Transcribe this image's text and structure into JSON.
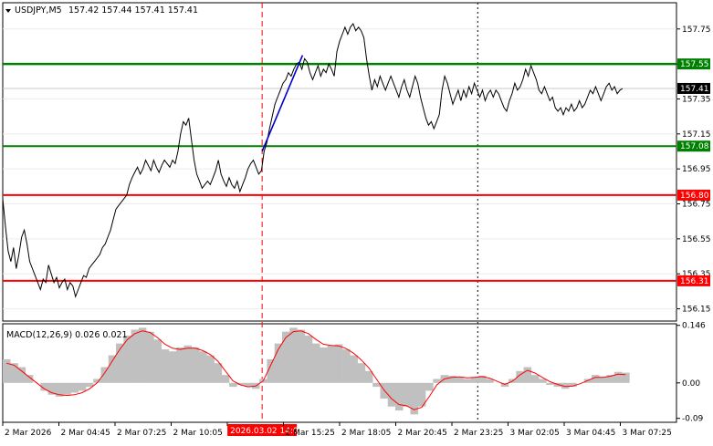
{
  "header": {
    "symbol": "USDJPY,M5",
    "ohlc": "157.42 157.44 157.41 157.41",
    "collapse_icon": "triangle-down-icon"
  },
  "colors": {
    "price_line": "#000000",
    "support": "#008000",
    "resistance": "#ff0000",
    "trend": "#0000cc",
    "histogram": "#c0c0c0",
    "signal": "#ff0000",
    "current_tag": "#000000",
    "highlight_tag": "#ff0000"
  },
  "chart_data": [
    {
      "type": "line",
      "name": "price",
      "ylim": [
        156.08,
        157.9
      ],
      "y_ticks": [
        "157.75",
        "157.55",
        "157.35",
        "157.15",
        "156.95",
        "156.75",
        "156.55",
        "156.35",
        "156.15"
      ],
      "x_tick_labels": [
        "2 Mar 2026",
        "2 Mar 04:45",
        "2 Mar 07:25",
        "2 Mar 10:05",
        "2026.03.02 14:00",
        "2 Mar 15:25",
        "2 Mar 18:05",
        "2 Mar 20:45",
        "2 Mar 23:25",
        "3 Mar 02:05",
        "3 Mar 04:45",
        "3 Mar 07:25"
      ],
      "highlighted_x_label": "2026.03.02 14:00",
      "current_price": "157.41",
      "levels": [
        {
          "label": "157.55",
          "value": 157.55,
          "kind": "support"
        },
        {
          "label": "157.08",
          "value": 157.08,
          "kind": "support"
        },
        {
          "label": "156.80",
          "value": 156.8,
          "kind": "resistance"
        },
        {
          "label": "156.31",
          "value": 156.31,
          "kind": "resistance"
        }
      ],
      "trend_segment": {
        "from": [
          0.385,
          157.05
        ],
        "to": [
          0.445,
          157.6
        ]
      },
      "vertical_markers": [
        {
          "x": 0.385,
          "style": "dashed-red"
        },
        {
          "x": 0.705,
          "style": "dotted-black"
        }
      ],
      "points": [
        [
          0.0,
          156.78
        ],
        [
          0.004,
          156.62
        ],
        [
          0.008,
          156.48
        ],
        [
          0.012,
          156.42
        ],
        [
          0.016,
          156.5
        ],
        [
          0.02,
          156.38
        ],
        [
          0.024,
          156.46
        ],
        [
          0.028,
          156.56
        ],
        [
          0.032,
          156.6
        ],
        [
          0.036,
          156.52
        ],
        [
          0.04,
          156.42
        ],
        [
          0.044,
          156.38
        ],
        [
          0.048,
          156.34
        ],
        [
          0.052,
          156.3
        ],
        [
          0.056,
          156.26
        ],
        [
          0.06,
          156.32
        ],
        [
          0.064,
          156.3
        ],
        [
          0.068,
          156.4
        ],
        [
          0.072,
          156.35
        ],
        [
          0.076,
          156.3
        ],
        [
          0.08,
          156.33
        ],
        [
          0.084,
          156.27
        ],
        [
          0.088,
          156.3
        ],
        [
          0.092,
          156.32
        ],
        [
          0.096,
          156.26
        ],
        [
          0.1,
          156.3
        ],
        [
          0.104,
          156.28
        ],
        [
          0.108,
          156.22
        ],
        [
          0.112,
          156.26
        ],
        [
          0.116,
          156.3
        ],
        [
          0.12,
          156.34
        ],
        [
          0.124,
          156.33
        ],
        [
          0.128,
          156.38
        ],
        [
          0.132,
          156.4
        ],
        [
          0.136,
          156.42
        ],
        [
          0.14,
          156.44
        ],
        [
          0.144,
          156.46
        ],
        [
          0.148,
          156.5
        ],
        [
          0.152,
          156.52
        ],
        [
          0.156,
          156.56
        ],
        [
          0.16,
          156.6
        ],
        [
          0.164,
          156.66
        ],
        [
          0.168,
          156.72
        ],
        [
          0.172,
          156.74
        ],
        [
          0.176,
          156.76
        ],
        [
          0.18,
          156.78
        ],
        [
          0.184,
          156.8
        ],
        [
          0.188,
          156.86
        ],
        [
          0.192,
          156.9
        ],
        [
          0.196,
          156.93
        ],
        [
          0.2,
          156.96
        ],
        [
          0.204,
          156.92
        ],
        [
          0.208,
          156.95
        ],
        [
          0.212,
          157.0
        ],
        [
          0.216,
          156.97
        ],
        [
          0.22,
          156.94
        ],
        [
          0.224,
          157.0
        ],
        [
          0.228,
          156.96
        ],
        [
          0.232,
          156.93
        ],
        [
          0.236,
          156.97
        ],
        [
          0.24,
          157.0
        ],
        [
          0.244,
          156.98
        ],
        [
          0.248,
          156.96
        ],
        [
          0.252,
          157.0
        ],
        [
          0.256,
          156.98
        ],
        [
          0.26,
          157.05
        ],
        [
          0.264,
          157.15
        ],
        [
          0.268,
          157.22
        ],
        [
          0.272,
          157.2
        ],
        [
          0.276,
          157.24
        ],
        [
          0.28,
          157.12
        ],
        [
          0.284,
          157.0
        ],
        [
          0.288,
          156.92
        ],
        [
          0.292,
          156.88
        ],
        [
          0.296,
          156.84
        ],
        [
          0.3,
          156.86
        ],
        [
          0.304,
          156.88
        ],
        [
          0.308,
          156.86
        ],
        [
          0.312,
          156.9
        ],
        [
          0.316,
          156.94
        ],
        [
          0.32,
          157.0
        ],
        [
          0.324,
          156.92
        ],
        [
          0.328,
          156.88
        ],
        [
          0.332,
          156.85
        ],
        [
          0.336,
          156.9
        ],
        [
          0.34,
          156.86
        ],
        [
          0.344,
          156.84
        ],
        [
          0.348,
          156.88
        ],
        [
          0.352,
          156.82
        ],
        [
          0.356,
          156.86
        ],
        [
          0.36,
          156.9
        ],
        [
          0.364,
          156.95
        ],
        [
          0.368,
          156.98
        ],
        [
          0.372,
          157.0
        ],
        [
          0.376,
          156.96
        ],
        [
          0.38,
          156.92
        ],
        [
          0.384,
          156.94
        ],
        [
          0.388,
          157.05
        ],
        [
          0.392,
          157.1
        ],
        [
          0.396,
          157.18
        ],
        [
          0.4,
          157.25
        ],
        [
          0.404,
          157.32
        ],
        [
          0.408,
          157.36
        ],
        [
          0.412,
          157.4
        ],
        [
          0.416,
          157.44
        ],
        [
          0.42,
          157.46
        ],
        [
          0.424,
          157.5
        ],
        [
          0.428,
          157.48
        ],
        [
          0.432,
          157.52
        ],
        [
          0.436,
          157.55
        ],
        [
          0.44,
          157.56
        ],
        [
          0.444,
          157.52
        ],
        [
          0.448,
          157.58
        ],
        [
          0.452,
          157.56
        ],
        [
          0.456,
          157.5
        ],
        [
          0.46,
          157.46
        ],
        [
          0.464,
          157.5
        ],
        [
          0.468,
          157.54
        ],
        [
          0.472,
          157.48
        ],
        [
          0.476,
          157.52
        ],
        [
          0.48,
          157.5
        ],
        [
          0.484,
          157.55
        ],
        [
          0.488,
          157.52
        ],
        [
          0.492,
          157.48
        ],
        [
          0.496,
          157.62
        ],
        [
          0.5,
          157.68
        ],
        [
          0.504,
          157.72
        ],
        [
          0.508,
          157.76
        ],
        [
          0.512,
          157.72
        ],
        [
          0.516,
          157.76
        ],
        [
          0.52,
          157.78
        ],
        [
          0.524,
          157.74
        ],
        [
          0.528,
          157.76
        ],
        [
          0.532,
          157.74
        ],
        [
          0.536,
          157.7
        ],
        [
          0.54,
          157.58
        ],
        [
          0.544,
          157.48
        ],
        [
          0.548,
          157.4
        ],
        [
          0.552,
          157.46
        ],
        [
          0.556,
          157.42
        ],
        [
          0.56,
          157.48
        ],
        [
          0.564,
          157.44
        ],
        [
          0.568,
          157.4
        ],
        [
          0.572,
          157.44
        ],
        [
          0.576,
          157.48
        ],
        [
          0.58,
          157.44
        ],
        [
          0.584,
          157.4
        ],
        [
          0.588,
          157.36
        ],
        [
          0.592,
          157.42
        ],
        [
          0.596,
          157.46
        ],
        [
          0.6,
          157.4
        ],
        [
          0.604,
          157.36
        ],
        [
          0.608,
          157.42
        ],
        [
          0.612,
          157.48
        ],
        [
          0.616,
          157.44
        ],
        [
          0.62,
          157.36
        ],
        [
          0.624,
          157.3
        ],
        [
          0.628,
          157.24
        ],
        [
          0.632,
          157.2
        ],
        [
          0.636,
          157.22
        ],
        [
          0.64,
          157.18
        ],
        [
          0.644,
          157.22
        ],
        [
          0.648,
          157.26
        ],
        [
          0.652,
          157.4
        ],
        [
          0.656,
          157.48
        ],
        [
          0.66,
          157.44
        ],
        [
          0.664,
          157.38
        ],
        [
          0.668,
          157.32
        ],
        [
          0.672,
          157.36
        ],
        [
          0.676,
          157.4
        ],
        [
          0.68,
          157.34
        ],
        [
          0.684,
          157.4
        ],
        [
          0.688,
          157.36
        ],
        [
          0.692,
          157.42
        ],
        [
          0.696,
          157.38
        ],
        [
          0.7,
          157.44
        ],
        [
          0.704,
          157.4
        ],
        [
          0.708,
          157.36
        ],
        [
          0.712,
          157.4
        ],
        [
          0.716,
          157.34
        ],
        [
          0.72,
          157.38
        ],
        [
          0.724,
          157.4
        ],
        [
          0.728,
          157.36
        ],
        [
          0.732,
          157.4
        ],
        [
          0.736,
          157.38
        ],
        [
          0.74,
          157.34
        ],
        [
          0.744,
          157.3
        ],
        [
          0.748,
          157.28
        ],
        [
          0.752,
          157.34
        ],
        [
          0.756,
          157.38
        ],
        [
          0.76,
          157.44
        ],
        [
          0.764,
          157.4
        ],
        [
          0.768,
          157.42
        ],
        [
          0.772,
          157.46
        ],
        [
          0.776,
          157.52
        ],
        [
          0.78,
          157.48
        ],
        [
          0.784,
          157.54
        ],
        [
          0.788,
          157.5
        ],
        [
          0.792,
          157.46
        ],
        [
          0.796,
          157.4
        ],
        [
          0.8,
          157.38
        ],
        [
          0.804,
          157.42
        ],
        [
          0.808,
          157.38
        ],
        [
          0.812,
          157.34
        ],
        [
          0.816,
          157.36
        ],
        [
          0.82,
          157.3
        ],
        [
          0.824,
          157.28
        ],
        [
          0.828,
          157.3
        ],
        [
          0.832,
          157.26
        ],
        [
          0.836,
          157.3
        ],
        [
          0.84,
          157.28
        ],
        [
          0.844,
          157.32
        ],
        [
          0.848,
          157.28
        ],
        [
          0.852,
          157.3
        ],
        [
          0.856,
          157.34
        ],
        [
          0.86,
          157.3
        ],
        [
          0.864,
          157.32
        ],
        [
          0.868,
          157.36
        ],
        [
          0.872,
          157.4
        ],
        [
          0.876,
          157.38
        ],
        [
          0.88,
          157.42
        ],
        [
          0.884,
          157.38
        ],
        [
          0.888,
          157.34
        ],
        [
          0.892,
          157.38
        ],
        [
          0.896,
          157.42
        ],
        [
          0.9,
          157.44
        ],
        [
          0.904,
          157.4
        ],
        [
          0.908,
          157.42
        ],
        [
          0.912,
          157.38
        ],
        [
          0.916,
          157.4
        ],
        [
          0.92,
          157.41
        ]
      ]
    },
    {
      "type": "bar",
      "name": "macd",
      "title": "MACD(12,26,9) 0.026 0.021",
      "ylim": [
        -0.1,
        0.15
      ],
      "y_ticks": [
        "0.146",
        "0.00",
        "-0.09"
      ],
      "histogram": [
        0.06,
        0.05,
        0.04,
        0.02,
        0.0,
        -0.02,
        -0.03,
        -0.035,
        -0.03,
        -0.025,
        -0.02,
        -0.01,
        0.01,
        0.04,
        0.07,
        0.1,
        0.12,
        0.135,
        0.14,
        0.13,
        0.11,
        0.085,
        0.08,
        0.09,
        0.095,
        0.09,
        0.08,
        0.07,
        0.05,
        0.02,
        -0.01,
        -0.005,
        -0.01,
        -0.015,
        0.01,
        0.06,
        0.1,
        0.13,
        0.14,
        0.135,
        0.12,
        0.1,
        0.09,
        0.095,
        0.098,
        0.085,
        0.07,
        0.05,
        0.03,
        -0.01,
        -0.04,
        -0.06,
        -0.07,
        -0.06,
        -0.08,
        -0.06,
        -0.02,
        0.01,
        0.02,
        0.018,
        0.015,
        0.01,
        0.015,
        0.018,
        0.01,
        0.0,
        -0.01,
        0.01,
        0.03,
        0.04,
        0.02,
        0.01,
        -0.005,
        -0.01,
        -0.015,
        -0.01,
        0.0,
        0.01,
        0.02,
        0.015,
        0.02,
        0.028,
        0.026
      ],
      "signal": [
        0.05,
        0.045,
        0.03,
        0.015,
        0.0,
        -0.015,
        -0.025,
        -0.03,
        -0.032,
        -0.03,
        -0.025,
        -0.015,
        0.0,
        0.025,
        0.055,
        0.085,
        0.11,
        0.125,
        0.132,
        0.128,
        0.115,
        0.098,
        0.088,
        0.085,
        0.088,
        0.088,
        0.082,
        0.072,
        0.055,
        0.03,
        0.005,
        -0.005,
        -0.01,
        -0.008,
        0.005,
        0.045,
        0.085,
        0.115,
        0.13,
        0.132,
        0.125,
        0.11,
        0.098,
        0.095,
        0.094,
        0.087,
        0.075,
        0.058,
        0.038,
        0.01,
        -0.018,
        -0.04,
        -0.055,
        -0.058,
        -0.068,
        -0.062,
        -0.035,
        -0.005,
        0.01,
        0.014,
        0.015,
        0.013,
        0.014,
        0.016,
        0.012,
        0.004,
        -0.004,
        0.004,
        0.02,
        0.032,
        0.025,
        0.014,
        0.003,
        -0.004,
        -0.009,
        -0.008,
        -0.002,
        0.006,
        0.014,
        0.014,
        0.017,
        0.022,
        0.021
      ]
    }
  ]
}
